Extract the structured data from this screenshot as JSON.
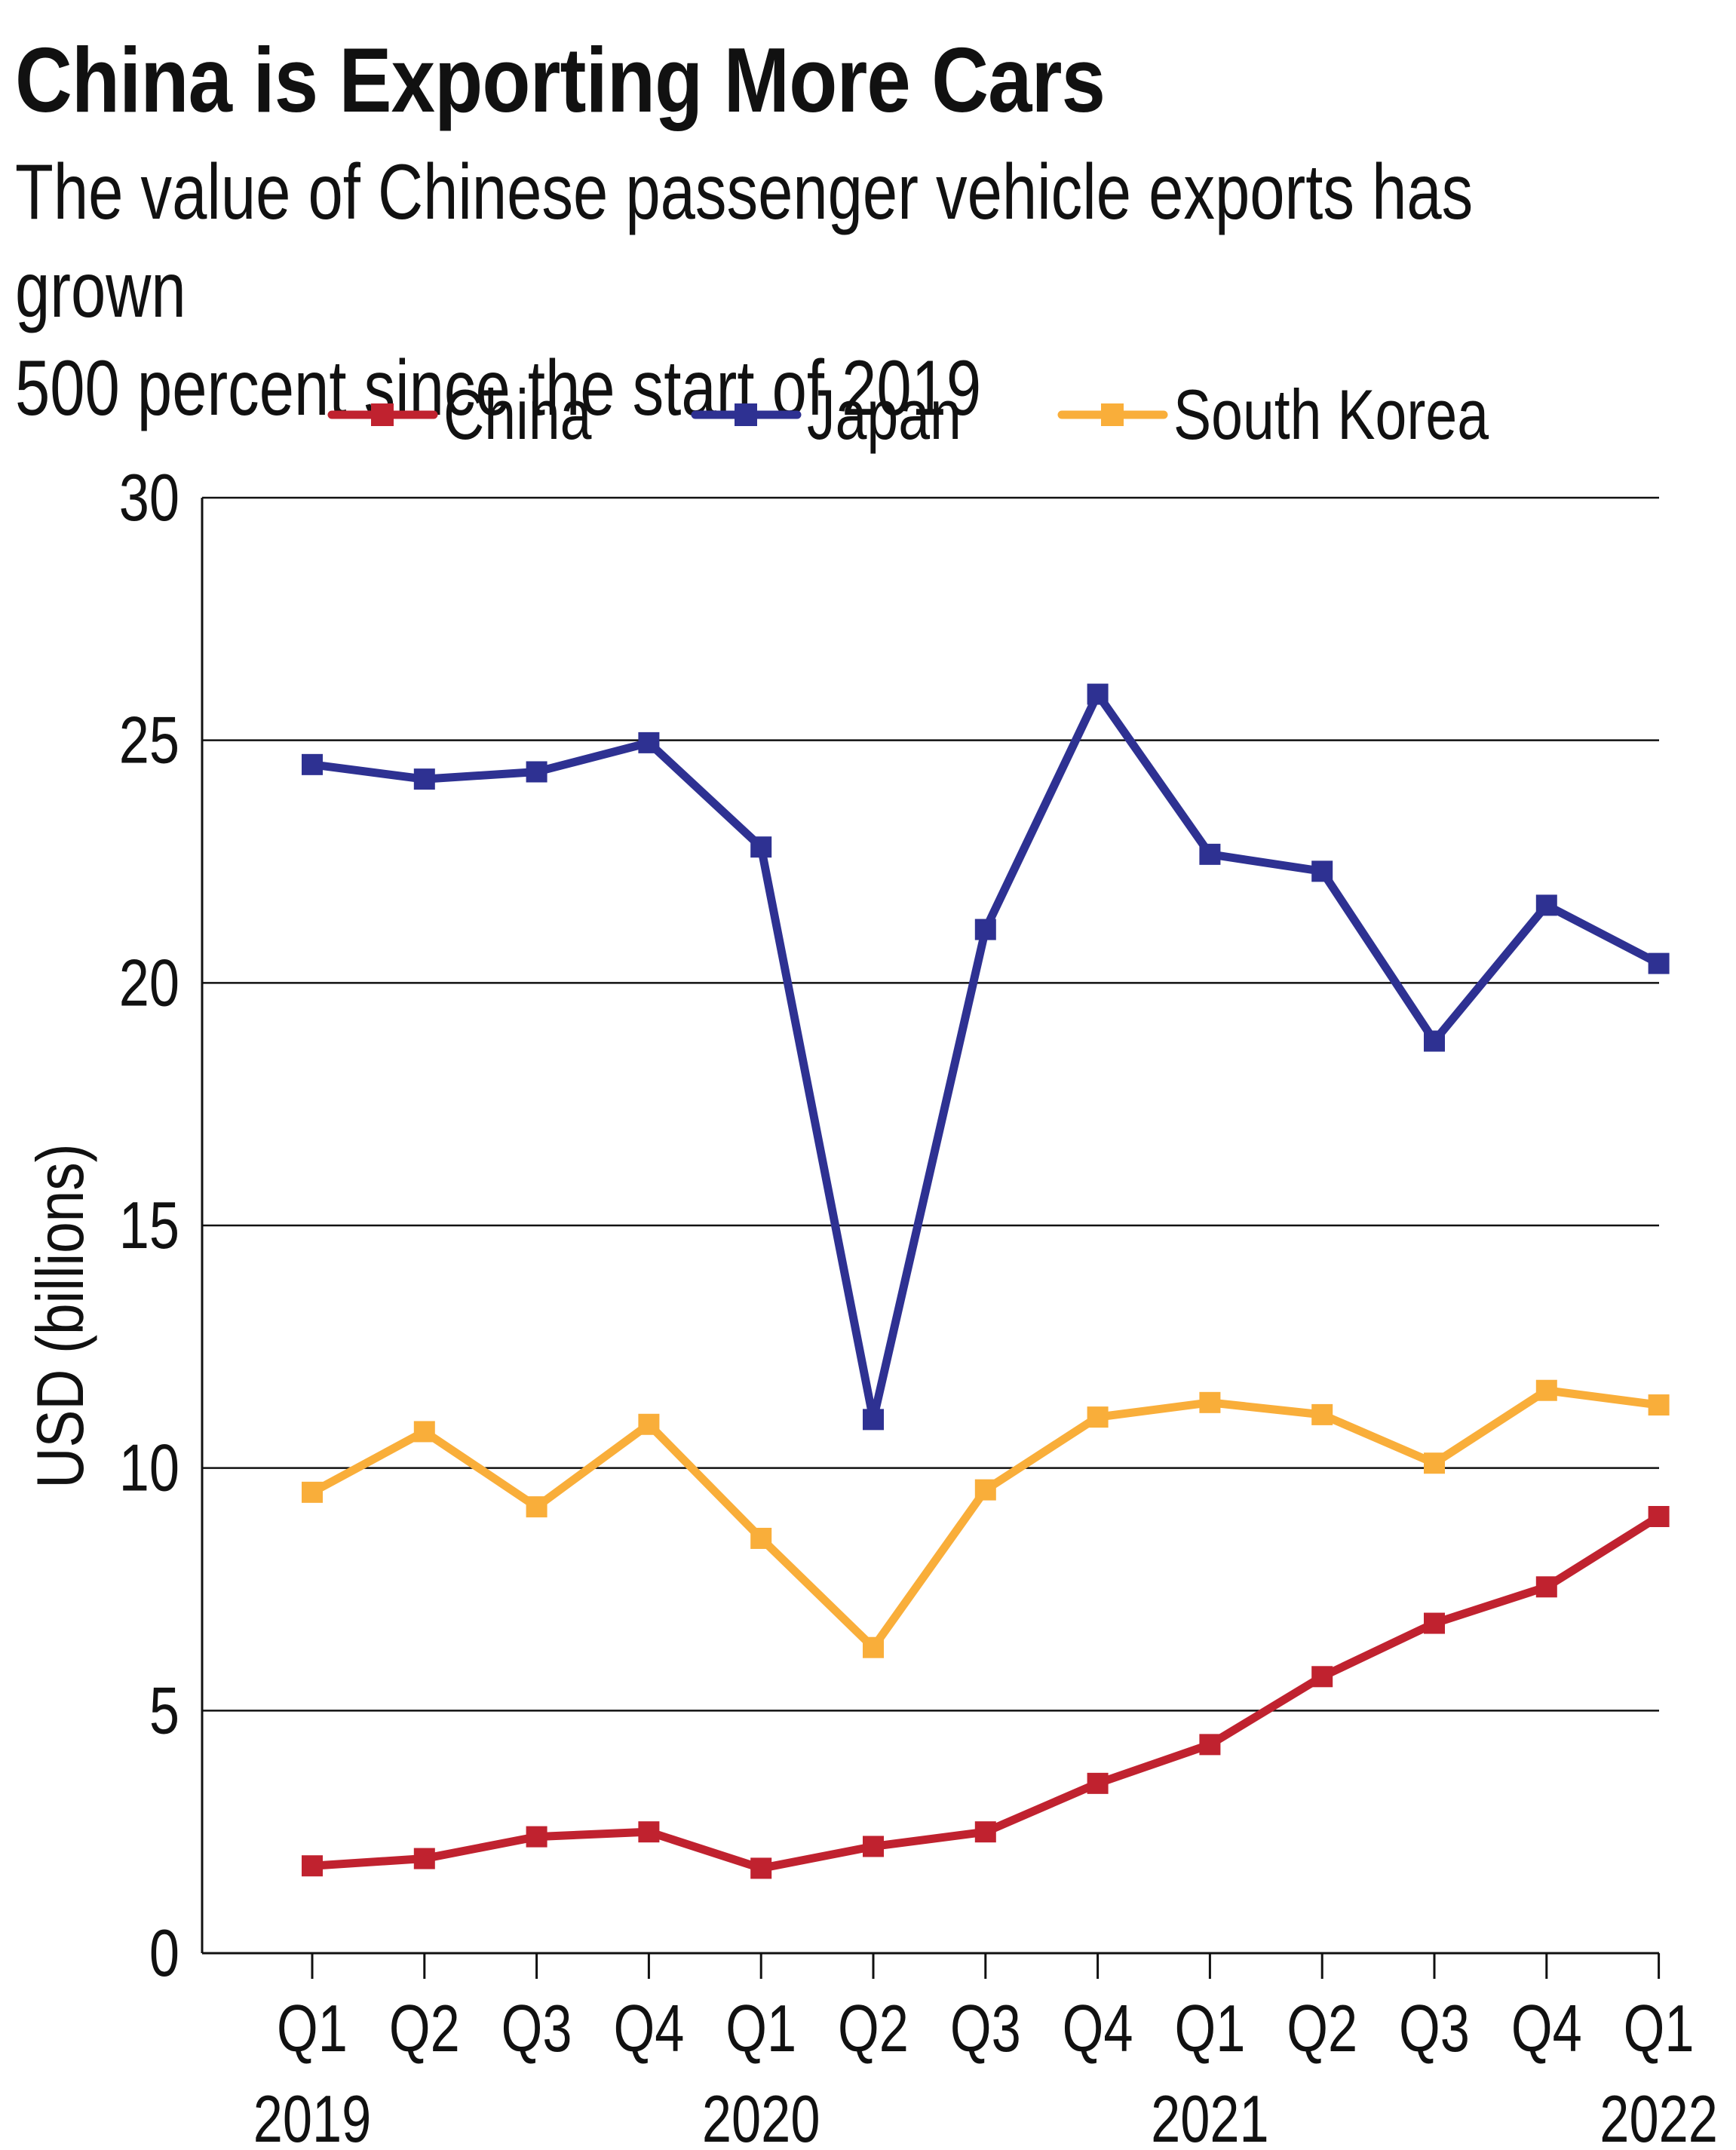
{
  "chart_data": {
    "type": "line",
    "title": "China is Exporting More Cars",
    "subtitle_lines": [
      "The value of Chinese passenger vehicle exports has grown",
      "500 percent since the start of 2019"
    ],
    "ylabel": "USD (billions)",
    "xlabel": "",
    "ylim": [
      0,
      30
    ],
    "yticks": [
      "0",
      "5",
      "10",
      "15",
      "20",
      "25",
      "30"
    ],
    "categories": [
      "Q1",
      "Q2",
      "Q3",
      "Q4",
      "Q1",
      "Q2",
      "Q3",
      "Q4",
      "Q1",
      "Q2",
      "Q3",
      "Q4",
      "Q1"
    ],
    "year_labels": [
      {
        "label": "2019",
        "at": 0
      },
      {
        "label": "2020",
        "at": 4
      },
      {
        "label": "2021",
        "at": 8
      },
      {
        "label": "2022",
        "at": 12
      }
    ],
    "grid": "horizontal",
    "legend_position": "top",
    "series": [
      {
        "name": "China",
        "color": "#c0222f",
        "values": [
          1.8,
          1.95,
          2.4,
          2.5,
          1.75,
          2.2,
          2.5,
          3.5,
          4.3,
          5.7,
          6.8,
          7.55,
          9.0
        ]
      },
      {
        "name": "Japan",
        "color": "#2e3192",
        "values": [
          24.5,
          24.2,
          24.35,
          24.95,
          22.8,
          11.0,
          21.1,
          25.95,
          22.65,
          22.3,
          18.8,
          21.6,
          20.4
        ]
      },
      {
        "name": "South Korea",
        "color": "#f9ae3a",
        "values": [
          9.5,
          10.75,
          9.2,
          10.9,
          8.55,
          6.3,
          9.55,
          11.05,
          11.35,
          11.1,
          10.1,
          11.6,
          11.3
        ]
      }
    ]
  }
}
